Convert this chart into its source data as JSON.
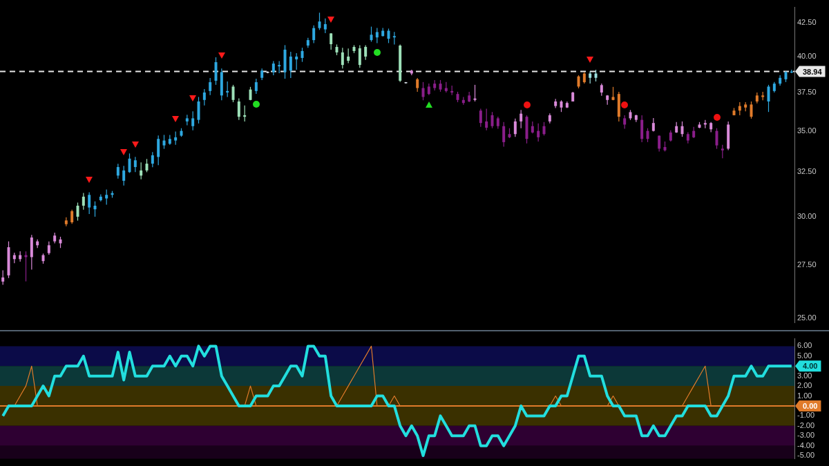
{
  "chart_data": [
    {
      "type": "candlestick",
      "log": "y",
      "tick_labels": "y",
      "legend": false,
      "categories": [
        null,
        null,
        null,
        null,
        null,
        null,
        null,
        null,
        null,
        null,
        null,
        null,
        null,
        null,
        null,
        null,
        null,
        null,
        null,
        null,
        null,
        null,
        null,
        null,
        null,
        null,
        null,
        null,
        null,
        null,
        null,
        null,
        null,
        null,
        null,
        null,
        null,
        null,
        null,
        null,
        null,
        null,
        null,
        null,
        null,
        null,
        null,
        null,
        null,
        null,
        null,
        null,
        null,
        null,
        null,
        null,
        null,
        null,
        null,
        null,
        null,
        null,
        null,
        null,
        null,
        null,
        null,
        null,
        null,
        null,
        null,
        null,
        null,
        null,
        null,
        null,
        null,
        null,
        null,
        null,
        null,
        null,
        null,
        null,
        null,
        null,
        null,
        null,
        null,
        null,
        null,
        null,
        null,
        null,
        null,
        null,
        null,
        null,
        null,
        null,
        null,
        null,
        null,
        null,
        null,
        null,
        null,
        null,
        null,
        null,
        null,
        null,
        null,
        null,
        null,
        null,
        null,
        null,
        null,
        null,
        null,
        null,
        null,
        null,
        null,
        null,
        null,
        null,
        null,
        null,
        null,
        null,
        null,
        null,
        null,
        null,
        null,
        null
      ],
      "ohlc": [
        [
          26.9,
          27.25,
          26.55,
          26.7
        ],
        [
          28.4,
          28.7,
          26.87,
          27.0
        ],
        [
          28.0,
          28.12,
          27.6,
          27.8
        ],
        [
          28.0,
          28.19,
          27.67,
          27.8
        ],
        [
          28.0,
          28.19,
          26.71,
          27.9
        ],
        [
          28.9,
          29.04,
          27.28,
          27.9
        ],
        [
          28.7,
          28.8,
          28.36,
          28.5
        ],
        [
          28.0,
          28.08,
          27.57,
          27.7
        ],
        [
          28.5,
          28.7,
          28.02,
          28.1
        ],
        [
          29.0,
          29.15,
          28.6,
          28.7
        ],
        [
          28.8,
          28.94,
          28.36,
          28.6
        ],
        [
          29.6,
          29.97,
          29.49,
          29.8
        ],
        [
          29.7,
          30.38,
          29.62,
          30.3
        ],
        [
          30.0,
          30.77,
          29.79,
          30.6
        ],
        [
          30.6,
          31.31,
          30.38,
          31.1
        ],
        [
          30.5,
          31.35,
          30.15,
          31.2
        ],
        [
          30.4,
          30.84,
          30.0,
          30.6
        ],
        [
          30.9,
          31.23,
          30.84,
          31.1
        ],
        [
          31.0,
          31.5,
          30.65,
          31.2
        ],
        [
          31.2,
          31.42,
          31.04,
          31.3
        ],
        [
          32.3,
          32.99,
          32.12,
          32.8
        ],
        [
          32.0,
          32.87,
          31.73,
          32.6
        ],
        [
          32.5,
          33.61,
          32.46,
          33.3
        ],
        [
          32.8,
          33.4,
          32.5,
          33.2
        ],
        [
          32.3,
          33.07,
          32.08,
          32.6
        ],
        [
          32.6,
          33.28,
          32.5,
          33.0
        ],
        [
          33.0,
          33.69,
          32.79,
          33.5
        ],
        [
          33.4,
          34.71,
          32.91,
          34.5
        ],
        [
          34.1,
          34.75,
          33.89,
          34.4
        ],
        [
          34.2,
          34.75,
          34.14,
          34.5
        ],
        [
          34.4,
          34.96,
          34.14,
          34.6
        ],
        [
          34.7,
          35.17,
          34.63,
          35.0
        ],
        [
          35.6,
          36.03,
          35.35,
          35.8
        ],
        [
          35.3,
          36.25,
          35.04,
          35.8
        ],
        [
          35.7,
          37.2,
          35.47,
          36.9
        ],
        [
          37.0,
          37.73,
          36.64,
          37.5
        ],
        [
          37.6,
          38.49,
          37.33,
          38.2
        ],
        [
          38.3,
          39.95,
          38.02,
          39.6
        ],
        [
          37.3,
          39.15,
          36.98,
          38.9
        ],
        [
          37.5,
          38.25,
          37.2,
          37.6
        ],
        [
          37.0,
          38.02,
          36.85,
          37.9
        ],
        [
          35.9,
          37.11,
          35.69,
          36.9
        ],
        [
          35.9,
          36.64,
          35.6,
          36.0
        ],
        [
          37.0,
          37.88,
          36.98,
          37.7
        ],
        [
          37.6,
          38.44,
          37.41,
          38.2
        ],
        [
          38.5,
          39.15,
          38.35,
          39.0
        ],
        [
          38.85,
          38.96,
          38.82,
          38.92
        ],
        [
          38.9,
          39.67,
          38.68,
          39.5
        ],
        [
          39.3,
          39.67,
          38.82,
          39.4
        ],
        [
          38.9,
          40.83,
          38.44,
          40.5
        ],
        [
          39.0,
          40.34,
          38.49,
          40.0
        ],
        [
          39.8,
          40.25,
          39.06,
          40.0
        ],
        [
          39.9,
          40.64,
          39.62,
          40.4
        ],
        [
          40.8,
          41.37,
          40.64,
          41.2
        ],
        [
          41.2,
          42.3,
          40.98,
          42.1
        ],
        [
          42.1,
          43.28,
          41.96,
          42.6
        ],
        [
          42.0,
          42.84,
          41.72,
          42.4
        ],
        [
          40.9,
          41.72,
          40.49,
          41.7
        ],
        [
          40.3,
          40.88,
          40.1,
          40.7
        ],
        [
          39.4,
          40.64,
          39.15,
          40.3
        ],
        [
          39.7,
          40.59,
          39.53,
          40.0
        ],
        [
          40.4,
          40.83,
          40.25,
          40.7
        ],
        [
          39.4,
          40.83,
          39.2,
          40.6
        ],
        [
          40.0,
          40.83,
          39.76,
          40.7
        ],
        [
          41.2,
          42.21,
          41.08,
          41.6
        ],
        [
          41.4,
          42.11,
          40.98,
          41.8
        ],
        [
          41.5,
          42.11,
          41.47,
          41.9
        ],
        [
          41.3,
          42.06,
          40.98,
          41.9
        ],
        [
          41.4,
          41.81,
          40.88,
          41.5
        ],
        [
          38.3,
          40.88,
          38.21,
          40.8
        ],
        [
          38.13,
          38.21,
          38.11,
          38.2
        ],
        [
          39.0,
          39.06,
          38.68,
          38.8
        ],
        [
          37.8,
          38.49,
          37.55,
          38.4
        ],
        [
          37.8,
          38.21,
          36.98,
          37.2
        ],
        [
          37.9,
          38.11,
          37.33,
          37.4
        ],
        [
          38.1,
          38.35,
          37.64,
          37.8
        ],
        [
          38.1,
          38.35,
          37.55,
          37.7
        ],
        [
          37.8,
          38.21,
          37.5,
          37.6
        ],
        [
          37.6,
          37.97,
          37.33,
          37.5
        ],
        [
          37.4,
          37.55,
          36.85,
          37.0
        ],
        [
          37.0,
          37.2,
          36.68,
          36.8
        ],
        [
          37.3,
          37.55,
          36.85,
          36.9
        ],
        [
          37.1,
          38.02,
          36.9,
          37.0
        ],
        [
          36.3,
          36.42,
          35.26,
          35.5
        ],
        [
          35.6,
          36.42,
          35.04,
          35.2
        ],
        [
          36.0,
          36.21,
          35.17,
          35.3
        ],
        [
          35.8,
          35.91,
          35.13,
          35.3
        ],
        [
          35.3,
          35.56,
          34.02,
          34.3
        ],
        [
          34.8,
          35.17,
          34.55,
          34.6
        ],
        [
          35.6,
          35.78,
          34.63,
          34.8
        ],
        [
          36.1,
          36.34,
          35.17,
          35.6
        ],
        [
          35.9,
          35.99,
          34.22,
          34.5
        ],
        [
          35.3,
          35.6,
          34.84,
          34.9
        ],
        [
          35.0,
          35.47,
          34.34,
          34.6
        ],
        [
          35.3,
          35.56,
          34.71,
          34.8
        ],
        [
          36.0,
          36.12,
          35.47,
          35.6
        ],
        [
          36.9,
          37.07,
          36.47,
          36.6
        ],
        [
          36.9,
          36.98,
          36.21,
          36.5
        ],
        [
          36.8,
          36.9,
          36.47,
          36.5
        ],
        [
          37.5,
          37.55,
          36.9,
          36.9
        ],
        [
          37.9,
          38.68,
          37.78,
          38.6
        ],
        [
          38.2,
          38.91,
          38.11,
          38.8
        ],
        [
          38.5,
          38.96,
          38.11,
          38.8
        ],
        [
          38.5,
          39.06,
          38.25,
          38.8
        ],
        [
          38.0,
          38.11,
          37.28,
          37.5
        ],
        [
          37.3,
          37.33,
          36.68,
          37.0
        ],
        [
          37.0,
          37.88,
          36.98,
          37.2
        ],
        [
          35.9,
          37.55,
          35.6,
          37.4
        ],
        [
          35.8,
          35.99,
          35.13,
          35.4
        ],
        [
          36.2,
          36.34,
          35.69,
          35.8
        ],
        [
          36.0,
          36.03,
          35.56,
          35.7
        ],
        [
          35.7,
          35.99,
          34.3,
          34.5
        ],
        [
          35.0,
          35.17,
          34.3,
          34.5
        ],
        [
          35.5,
          35.82,
          34.96,
          35.0
        ],
        [
          34.7,
          34.71,
          33.73,
          33.9
        ],
        [
          34.0,
          34.34,
          33.73,
          33.8
        ],
        [
          34.9,
          35.04,
          34.34,
          34.4
        ],
        [
          35.3,
          35.56,
          34.88,
          34.9
        ],
        [
          35.3,
          35.6,
          34.63,
          34.8
        ],
        [
          34.8,
          34.92,
          34.22,
          34.4
        ],
        [
          35.0,
          35.26,
          34.55,
          34.6
        ],
        [
          35.4,
          35.56,
          35.17,
          35.2
        ],
        [
          35.5,
          35.69,
          35.17,
          35.4
        ],
        [
          35.5,
          35.56,
          34.92,
          35.1
        ],
        [
          35.0,
          35.17,
          33.89,
          34.1
        ],
        [
          33.9,
          34.14,
          33.32,
          33.8
        ],
        [
          35.4,
          35.6,
          33.81,
          33.9
        ],
        [
          36.0,
          36.47,
          35.99,
          36.3
        ],
        [
          36.3,
          36.85,
          35.99,
          36.6
        ],
        [
          36.5,
          36.85,
          36.25,
          36.7
        ],
        [
          35.9,
          36.9,
          35.78,
          36.7
        ],
        [
          36.9,
          37.5,
          36.77,
          37.3
        ],
        [
          37.2,
          37.55,
          36.98,
          37.3
        ],
        [
          36.9,
          38.02,
          36.21,
          37.9
        ],
        [
          37.6,
          38.21,
          37.5,
          38.1
        ],
        [
          38.1,
          38.68,
          37.97,
          38.5
        ],
        [
          38.4,
          38.96,
          38.21,
          38.9
        ],
        [
          38.9,
          39.06,
          38.82,
          38.94
        ]
      ],
      "colors": [
        "#d98ad9",
        "#d98ad9",
        "#d98ad9",
        "#d98ad9",
        "#8a1e8a",
        "#d98ad9",
        "#d98ad9",
        "#d98ad9",
        "#d98ad9",
        "#d98ad9",
        "#d98ad9",
        "#e07b2a",
        "#e07b2a",
        "#9de0b8",
        "#9de0b8",
        "#2ea8e0",
        "#2ea8e0",
        "#2ea8e0",
        "#2ea8e0",
        "#2ea8e0",
        "#2ea8e0",
        "#2ea8e0",
        "#2ea8e0",
        "#2ea8e0",
        "#9de0b8",
        "#9de0b8",
        "#2ea8e0",
        "#2ea8e0",
        "#2ea8e0",
        "#2ea8e0",
        "#2ea8e0",
        "#2ea8e0",
        "#2ea8e0",
        "#2ea8e0",
        "#2ea8e0",
        "#2ea8e0",
        "#2ea8e0",
        "#2ea8e0",
        "#2ea8e0",
        "#2ea8e0",
        "#9de0b8",
        "#9de0b8",
        "#9de0b8",
        "#9de0b8",
        "#2ea8e0",
        "#2ea8e0",
        "#d8e0e8",
        "#2ea8e0",
        "#2ea8e0",
        "#2ea8e0",
        "#2ea8e0",
        "#2ea8e0",
        "#2ea8e0",
        "#2ea8e0",
        "#2ea8e0",
        "#2ea8e0",
        "#2ea8e0",
        "#9de0b8",
        "#9de0b8",
        "#9de0b8",
        "#9de0b8",
        "#9de0b8",
        "#9de0b8",
        "#9de0b8",
        "#2ea8e0",
        "#2ea8e0",
        "#2ea8e0",
        "#2ea8e0",
        "#2ea8e0",
        "#9de0b8",
        "#d8e0e8",
        "#d98ad9",
        "#e07b2a",
        "#8a1e8a",
        "#8a1e8a",
        "#8a1e8a",
        "#8a1e8a",
        "#8a1e8a",
        "#8a1e8a",
        "#8a1e8a",
        "#8a1e8a",
        "#8a1e8a",
        "#d98ad9",
        "#8a1e8a",
        "#8a1e8a",
        "#8a1e8a",
        "#8a1e8a",
        "#8a1e8a",
        "#8a1e8a",
        "#d98ad9",
        "#d98ad9",
        "#8a1e8a",
        "#8a1e8a",
        "#8a1e8a",
        "#8a1e8a",
        "#d98ad9",
        "#d98ad9",
        "#d98ad9",
        "#d98ad9",
        "#d98ad9",
        "#e07b2a",
        "#e07b2a",
        "#9de0e0",
        "#9de0e0",
        "#d98ad9",
        "#d98ad9",
        "#e07b2a",
        "#e07b2a",
        "#8a1e8a",
        "#d98ad9",
        "#d98ad9",
        "#8a1e8a",
        "#8a1e8a",
        "#d98ad9",
        "#8a1e8a",
        "#8a1e8a",
        "#8a1e8a",
        "#d98ad9",
        "#d98ad9",
        "#8a1e8a",
        "#8a1e8a",
        "#d98ad9",
        "#d98ad9",
        "#d98ad9",
        "#8a1e8a",
        "#8a1e8a",
        "#d98ad9",
        "#e07b2a",
        "#e07b2a",
        "#e07b2a",
        "#e07b2a",
        "#e07b2a",
        "#e07b2a",
        "#2ea8e0",
        "#2ea8e0",
        "#2ea8e0",
        "#2ea8e0",
        "#2ea8e0"
      ],
      "ylim": [
        24.8,
        43.7
      ],
      "yticks": [
        {
          "value": 25,
          "label": "25.00"
        },
        {
          "value": 27.5,
          "label": "27.50"
        },
        {
          "value": 30,
          "label": "30.00"
        },
        {
          "value": 32.5,
          "label": "32.50"
        },
        {
          "value": 35,
          "label": "35.00"
        },
        {
          "value": 37.5,
          "label": "37.50"
        },
        {
          "value": 40,
          "label": "40.00"
        },
        {
          "value": 42.5,
          "label": "42.50"
        }
      ],
      "ref_lines": [
        {
          "axis": "y",
          "value": 38.94,
          "label": "38.94",
          "color": "#e8e8e8",
          "line_style": "dashed"
        }
      ]
    },
    {
      "type": "line",
      "tick_labels": "y",
      "legend": false,
      "marker": "none",
      "categories": [
        null,
        null,
        null,
        null,
        null,
        null,
        null,
        null,
        null,
        null,
        null,
        null,
        null,
        null,
        null,
        null,
        null,
        null,
        null,
        null,
        null,
        null,
        null,
        null,
        null,
        null,
        null,
        null,
        null,
        null,
        null,
        null,
        null,
        null,
        null,
        null,
        null,
        null,
        null,
        null,
        null,
        null,
        null,
        null,
        null,
        null,
        null,
        null,
        null,
        null,
        null,
        null,
        null,
        null,
        null,
        null,
        null,
        null,
        null,
        null,
        null,
        null,
        null,
        null,
        null,
        null,
        null,
        null,
        null,
        null,
        null,
        null,
        null,
        null,
        null,
        null,
        null,
        null,
        null,
        null,
        null,
        null,
        null,
        null,
        null,
        null,
        null,
        null,
        null,
        null,
        null,
        null,
        null,
        null,
        null,
        null,
        null,
        null,
        null,
        null,
        null,
        null,
        null,
        null,
        null,
        null,
        null,
        null,
        null,
        null,
        null,
        null,
        null,
        null,
        null,
        null,
        null,
        null,
        null,
        null,
        null,
        null,
        null,
        null,
        null,
        null,
        null,
        null,
        null,
        null,
        null,
        null,
        null,
        null,
        null,
        null,
        null,
        null
      ],
      "series": [
        {
          "color": "#22dede",
          "values": [
            -1,
            0,
            0,
            0,
            0,
            0,
            1,
            2,
            1,
            3,
            3,
            4,
            4,
            4,
            5,
            3,
            3,
            3,
            3,
            3,
            5.4,
            2.6,
            5.4,
            3,
            3,
            3,
            4,
            4,
            4,
            5,
            4,
            5,
            5,
            4,
            6,
            5,
            6,
            6,
            3,
            2,
            1,
            0,
            0,
            0,
            1,
            1,
            1,
            2,
            2,
            3,
            4,
            4,
            3,
            6,
            6,
            5,
            5,
            1,
            0,
            0,
            0,
            0,
            0,
            0,
            0,
            1,
            1,
            0,
            0,
            -2,
            -3,
            -2,
            -3,
            -5,
            -3,
            -3,
            -1,
            -2,
            -3,
            -3,
            -3,
            -2,
            -2,
            -4,
            -4,
            -3,
            -3,
            -4,
            -3,
            -2,
            0,
            -1,
            -1,
            -1,
            -1,
            0,
            0,
            1,
            1,
            3,
            5,
            5,
            3,
            3,
            3,
            1,
            0,
            0,
            -1,
            -1,
            -1,
            -3,
            -3,
            -2,
            -3,
            -3,
            -2,
            -1,
            -1,
            0,
            0,
            0,
            0,
            -1,
            -1,
            0,
            1,
            3,
            3,
            3,
            4,
            3,
            3,
            4,
            4,
            4,
            4,
            4
          ]
        },
        {
          "type": "line",
          "color": "#e07b2a",
          "values": [
            null,
            null,
            0,
            1,
            2,
            4,
            0,
            null,
            null,
            null,
            null,
            null,
            null,
            null,
            null,
            null,
            null,
            null,
            null,
            null,
            null,
            null,
            null,
            null,
            null,
            null,
            null,
            null,
            null,
            null,
            null,
            null,
            null,
            null,
            null,
            null,
            null,
            null,
            null,
            null,
            null,
            null,
            0,
            2,
            0,
            null,
            null,
            null,
            null,
            null,
            null,
            null,
            null,
            null,
            null,
            null,
            null,
            null,
            0,
            1,
            2,
            3,
            4,
            5,
            6,
            0,
            null,
            0,
            1,
            0,
            null,
            null,
            null,
            null,
            null,
            null,
            null,
            null,
            null,
            null,
            null,
            null,
            null,
            null,
            null,
            null,
            null,
            null,
            null,
            null,
            null,
            null,
            null,
            null,
            null,
            0,
            1,
            0,
            null,
            null,
            null,
            null,
            null,
            null,
            null,
            0,
            1,
            0,
            null,
            null,
            null,
            null,
            null,
            null,
            null,
            null,
            null,
            null,
            0,
            1,
            2,
            3,
            4,
            0,
            null,
            null,
            null,
            null,
            null,
            null,
            null,
            null,
            null,
            null,
            null,
            null,
            null,
            null
          ]
        }
      ],
      "ylim": [
        -5.3,
        6.75
      ],
      "yticks": [
        {
          "value": 6,
          "label": "6.00"
        },
        {
          "value": 5,
          "label": "5.00"
        },
        {
          "value": 3,
          "label": "3.00"
        },
        {
          "value": 2,
          "label": "2.00"
        },
        {
          "value": 1,
          "label": "1.00"
        },
        {
          "value": -1,
          "label": "-1.00"
        },
        {
          "value": -2,
          "label": "-2.00"
        },
        {
          "value": -3,
          "label": "-3.00"
        },
        {
          "value": -4,
          "label": "-4.00"
        },
        {
          "value": -5,
          "label": "-5.00"
        }
      ],
      "bands": [
        {
          "axis": "y",
          "from": 4,
          "to": 6,
          "color": "#0b0b48"
        },
        {
          "axis": "y",
          "from": 2,
          "to": 4,
          "color": "#0c3838"
        },
        {
          "axis": "y",
          "from": -2,
          "to": 2,
          "color": "#3a3000"
        },
        {
          "axis": "y",
          "from": -4,
          "to": -2,
          "color": "#2e0032"
        },
        {
          "axis": "y",
          "from": -5.3,
          "to": -4,
          "color": "#18001a"
        }
      ],
      "ref_lines": [
        {
          "axis": "y",
          "value": 0,
          "label": "0.00",
          "color": "#e07b2a"
        }
      ],
      "annotations": [
        "4.00"
      ]
    }
  ]
}
